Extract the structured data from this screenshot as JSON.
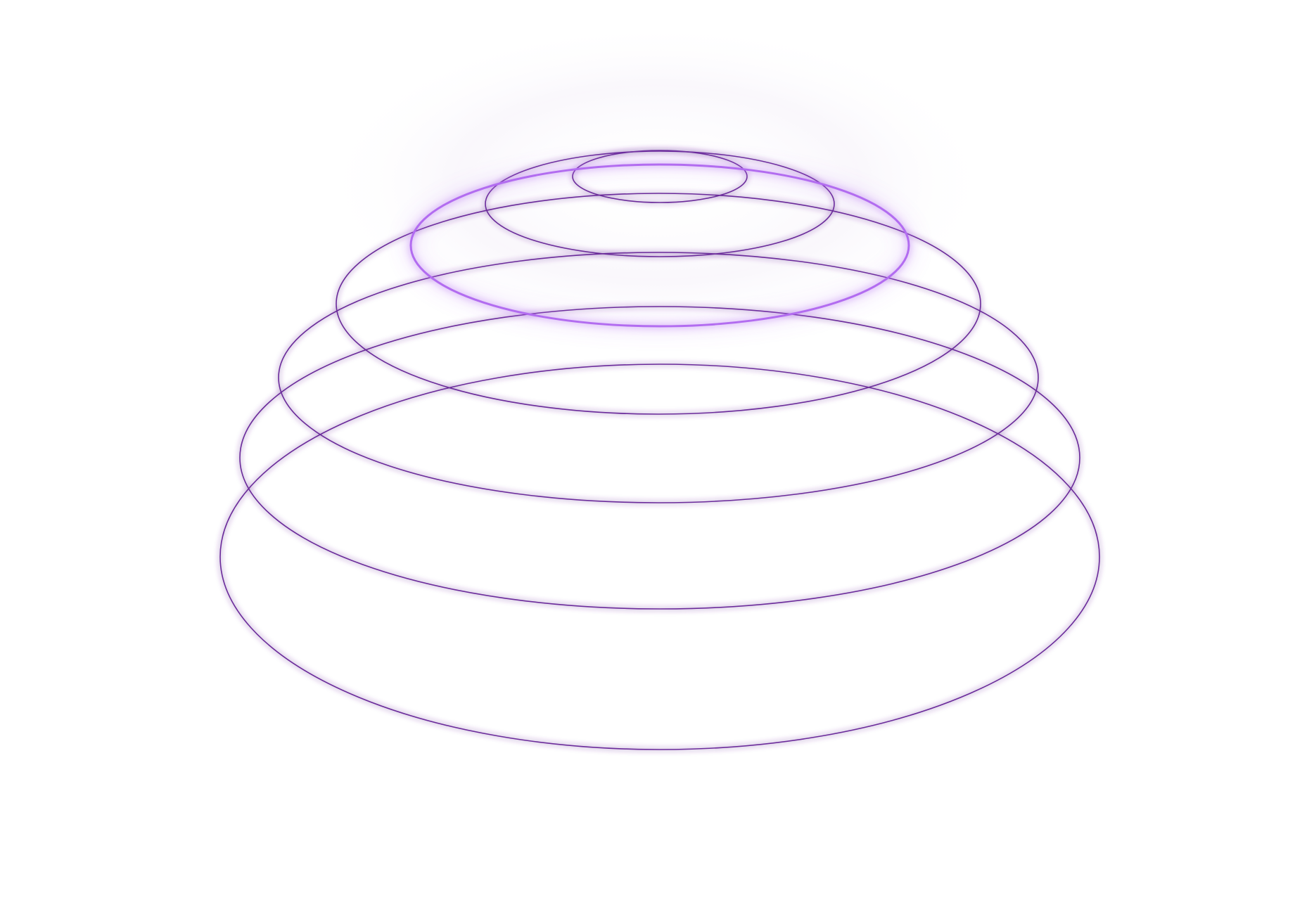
{
  "colors": {
    "background": "#ffffff",
    "ring_stroke": "#6a2c9a",
    "ring_glow": "#c27cff",
    "highlight_stroke": "#b26cf0",
    "highlight_glow": "#c98bff"
  },
  "rings": [
    {
      "name": "ring-1-top",
      "highlighted": false
    },
    {
      "name": "ring-2",
      "highlighted": false
    },
    {
      "name": "ring-3-highlighted",
      "highlighted": true
    },
    {
      "name": "ring-4",
      "highlighted": false
    },
    {
      "name": "ring-5",
      "highlighted": false
    },
    {
      "name": "ring-6",
      "highlighted": false
    },
    {
      "name": "ring-7-bottom",
      "highlighted": false
    }
  ]
}
